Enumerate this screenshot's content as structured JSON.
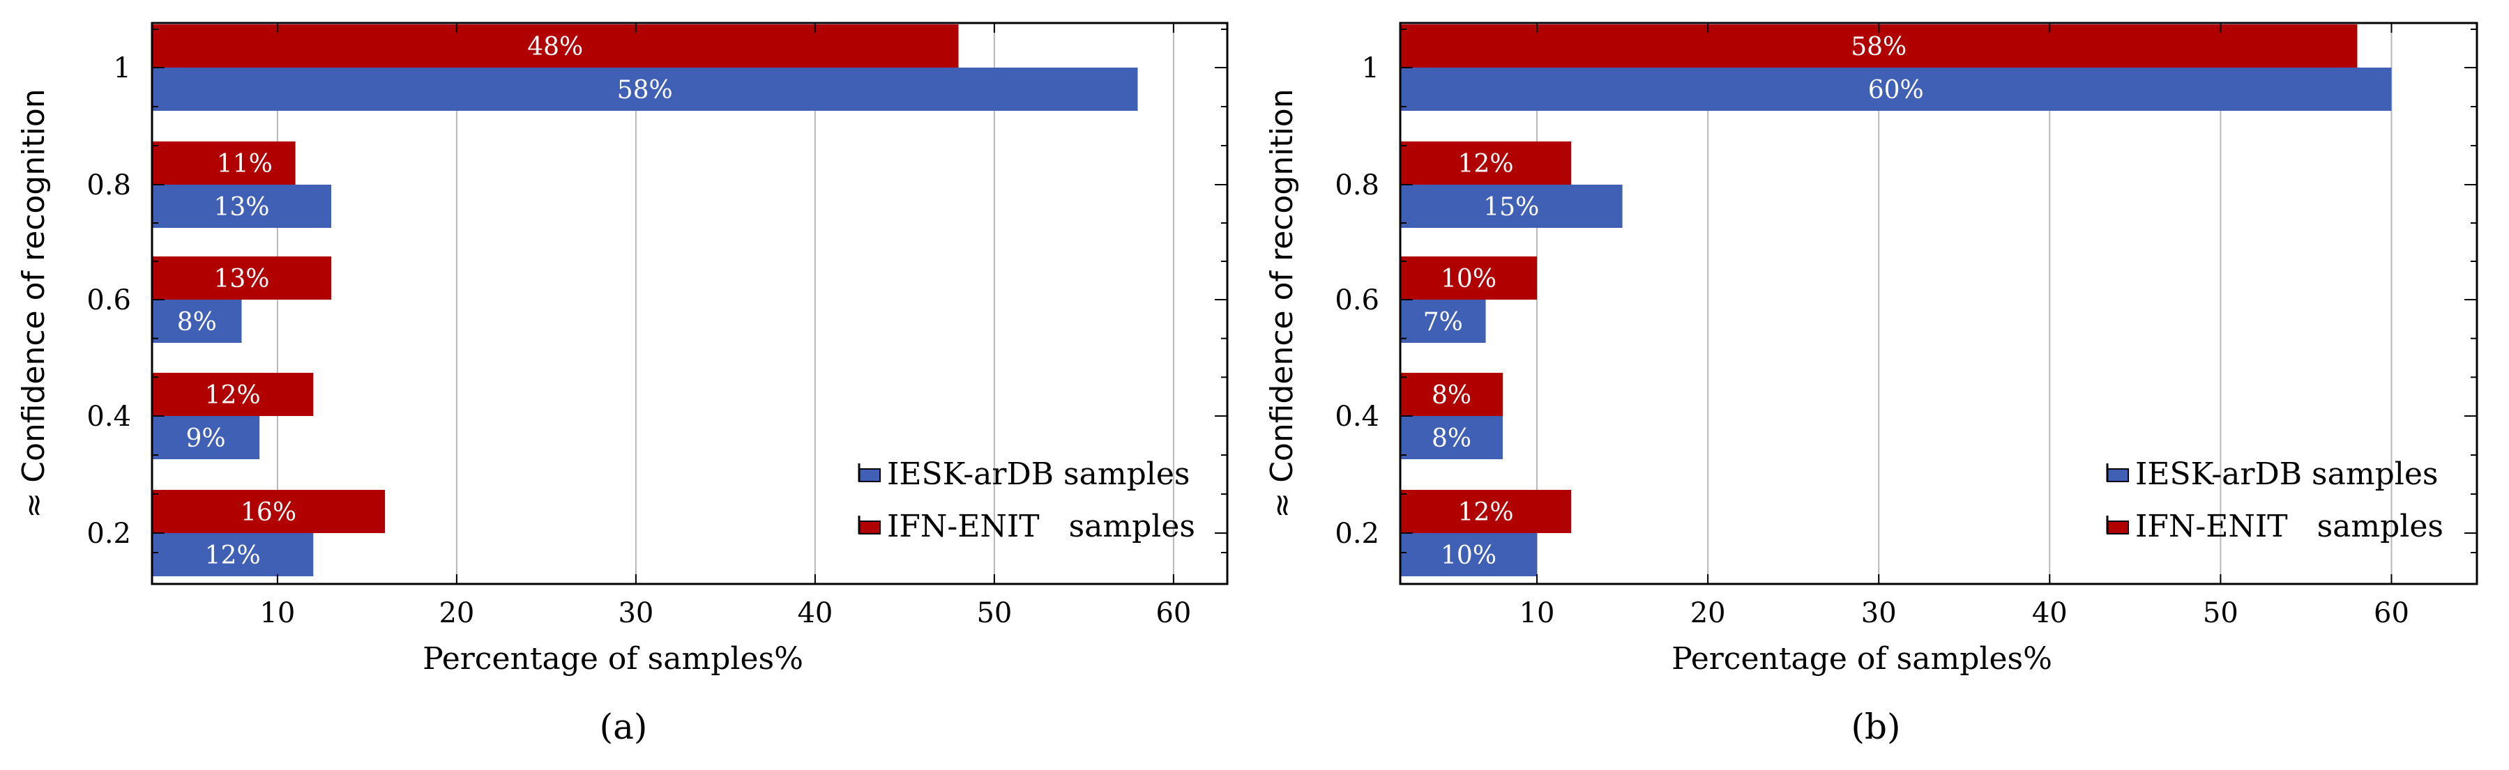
{
  "colors": {
    "IESK": "#4060b6",
    "IFN": "#b00000",
    "grid": "#b8b8b8"
  },
  "chart_data": [
    {
      "type": "bar",
      "orientation": "horizontal",
      "panel_label": "(a)",
      "xlabel": "Percentage of samples%",
      "ylabel": "≈ Confidence of recognition",
      "categories": [
        "0.2",
        "0.4",
        "0.6",
        "0.8",
        "1"
      ],
      "xlim": [
        3,
        63
      ],
      "x_ticks": [
        10,
        20,
        30,
        40,
        50,
        60
      ],
      "grid": true,
      "legend_position": "bottom-right",
      "series": [
        {
          "name": "IESK-arDB samples",
          "color_key": "IESK",
          "values": [
            12,
            9,
            8,
            13,
            58
          ],
          "labels": [
            "12%",
            "9%",
            "8%",
            "13%",
            "58%"
          ]
        },
        {
          "name": "IFN-ENIT   samples",
          "color_key": "IFN",
          "values": [
            16,
            12,
            13,
            11,
            48
          ],
          "labels": [
            "16%",
            "12%",
            "13%",
            "11%",
            "48%"
          ]
        }
      ]
    },
    {
      "type": "bar",
      "orientation": "horizontal",
      "panel_label": "(b)",
      "xlabel": "Percentage of samples%",
      "ylabel": "≈ Confidence of recognition",
      "categories": [
        "0.2",
        "0.4",
        "0.6",
        "0.8",
        "1"
      ],
      "xlim": [
        2,
        65
      ],
      "x_ticks": [
        10,
        20,
        30,
        40,
        50,
        60
      ],
      "grid": true,
      "legend_position": "bottom-right",
      "series": [
        {
          "name": "IESK-arDB samples",
          "color_key": "IESK",
          "values": [
            10,
            8,
            7,
            15,
            60
          ],
          "labels": [
            "10%",
            "8%",
            "7%",
            "15%",
            "60%"
          ]
        },
        {
          "name": "IFN-ENIT   samples",
          "color_key": "IFN",
          "values": [
            12,
            8,
            10,
            12,
            58
          ],
          "labels": [
            "12%",
            "8%",
            "10%",
            "12%",
            "58%"
          ]
        }
      ]
    }
  ]
}
